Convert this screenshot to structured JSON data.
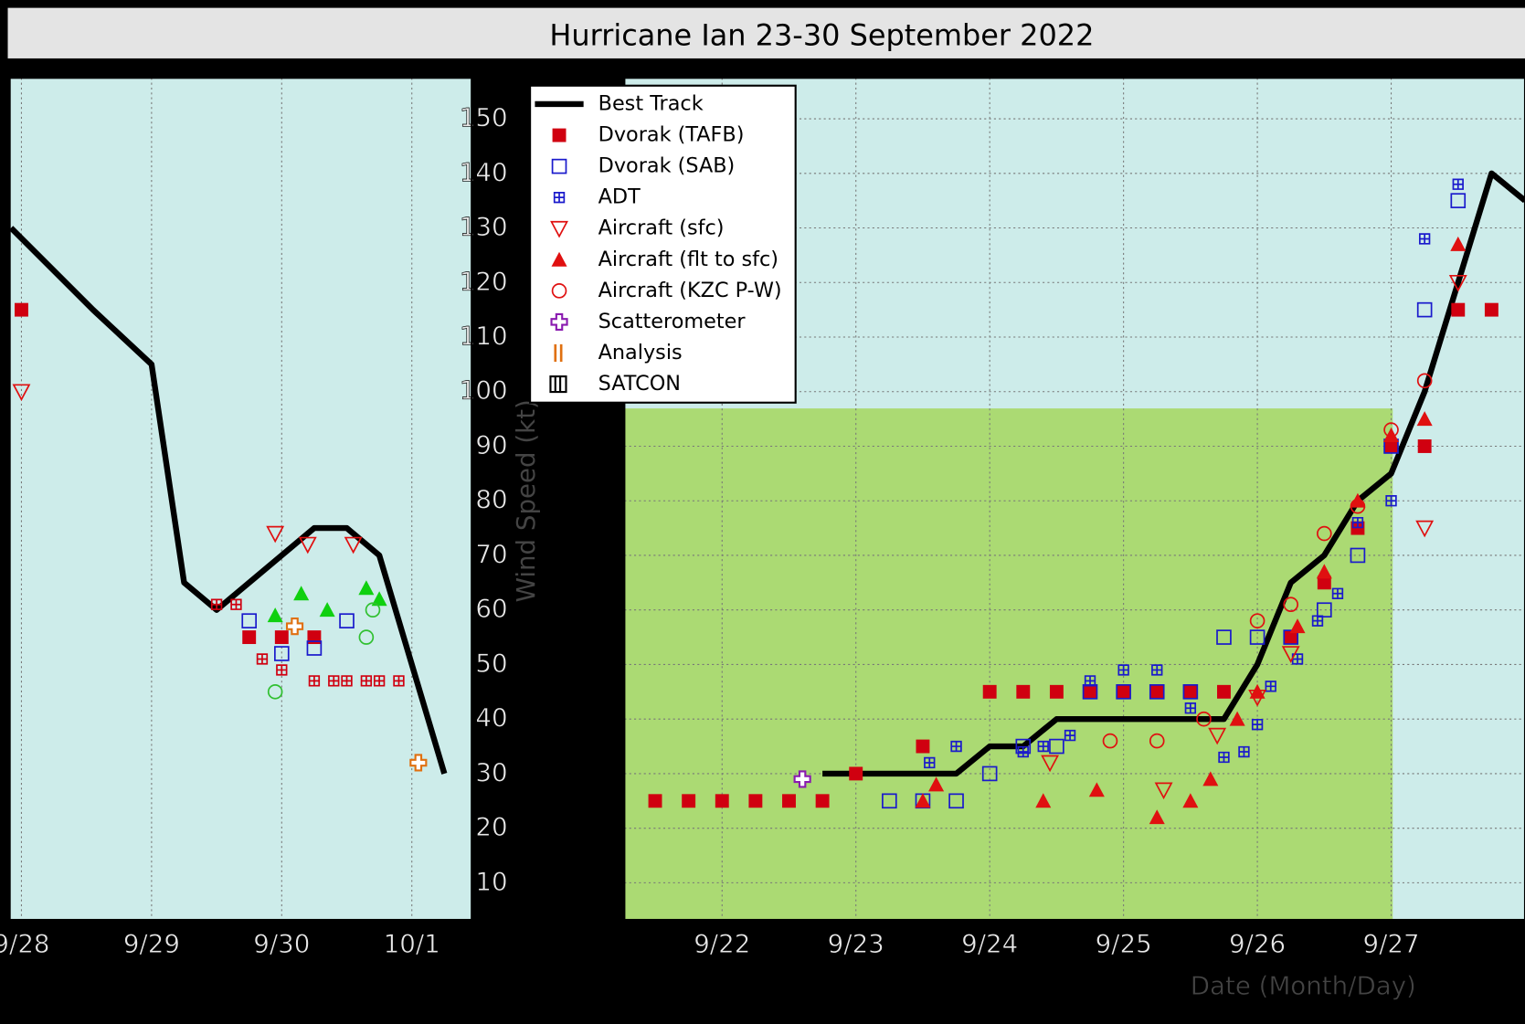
{
  "chart_data": [
    {
      "type": "line",
      "title": "Hurricane Ian  23-30 September 2022",
      "ylabel": "Wind Speed (kt)",
      "xlabel": "Date (Month/Day)",
      "xlim": [
        21.27,
        28.0
      ],
      "ylim": [
        3.2,
        157.5
      ],
      "grid": true,
      "legend": "upper left",
      "xticks": [
        {
          "value": 22,
          "label": "9/22"
        },
        {
          "value": 23,
          "label": "9/23"
        },
        {
          "value": 24,
          "label": "9/24"
        },
        {
          "value": 25,
          "label": "9/25"
        },
        {
          "value": 26,
          "label": "9/26"
        },
        {
          "value": 27,
          "label": "9/27"
        }
      ],
      "yticks": [
        10,
        20,
        30,
        40,
        50,
        60,
        70,
        80,
        90,
        100,
        110,
        120,
        130,
        140,
        150
      ],
      "series": [
        {
          "name": "Best Track",
          "color": "#000000",
          "marker": "line",
          "x": [
            22.75,
            23.75,
            24,
            24.25,
            24.5,
            25.75,
            26,
            26.25,
            26.5,
            26.75,
            27,
            27.25,
            27.5,
            27.75,
            28
          ],
          "values": [
            30,
            30,
            35,
            35,
            40,
            40,
            50,
            65,
            70,
            80,
            85,
            100,
            120,
            140,
            135
          ]
        },
        {
          "name": "Dvorak (TAFB)",
          "color": "#d00010",
          "marker": "square-filled",
          "x": [
            21.5,
            21.75,
            22,
            22.25,
            22.5,
            22.75,
            23,
            23.5,
            24,
            24.25,
            24.5,
            24.75,
            25,
            25.25,
            25.5,
            25.75,
            26.25,
            26.5,
            26.75,
            27,
            27.25,
            27.5,
            27.75
          ],
          "values": [
            25,
            25,
            25,
            25,
            25,
            25,
            30,
            35,
            45,
            45,
            45,
            45,
            45,
            45,
            45,
            45,
            55,
            65,
            75,
            90,
            90,
            115,
            115
          ]
        },
        {
          "name": "Dvorak (SAB)",
          "color": "#1a1acc",
          "marker": "square-open",
          "x": [
            23.25,
            23.5,
            23.75,
            24,
            24.25,
            24.5,
            24.75,
            25,
            25.25,
            25.5,
            25.75,
            26,
            26.25,
            26.5,
            26.75,
            27,
            27.25,
            27.5
          ],
          "values": [
            25,
            25,
            25,
            30,
            35,
            35,
            45,
            45,
            45,
            45,
            55,
            55,
            55,
            60,
            70,
            90,
            115,
            135
          ]
        },
        {
          "name": "ADT",
          "color": "#1a1acc",
          "marker": "square-plus",
          "x": [
            23.55,
            23.75,
            24.25,
            24.4,
            24.6,
            24.75,
            25,
            25.25,
            25.5,
            25.75,
            25.9,
            26,
            26.1,
            26.3,
            26.45,
            26.6,
            26.75,
            27,
            27.25,
            27.5
          ],
          "values": [
            32,
            35,
            34,
            35,
            37,
            47,
            49,
            49,
            42,
            33,
            34,
            39,
            46,
            51,
            58,
            63,
            76,
            80,
            128,
            138
          ]
        },
        {
          "name": "Aircraft (sfc)",
          "color": "#e01010",
          "marker": "tri-down-open",
          "x": [
            24.45,
            25.3,
            25.7,
            26,
            26.25,
            27.25,
            27.5
          ],
          "values": [
            32,
            27,
            37,
            44,
            52,
            75,
            120
          ]
        },
        {
          "name": "Aircraft (flt to sfc)",
          "color": "#e01010",
          "marker": "tri-up-filled",
          "x": [
            23.5,
            23.6,
            24.4,
            24.8,
            25.25,
            25.5,
            25.65,
            25.85,
            26,
            26.3,
            26.5,
            26.75,
            27,
            27.25,
            27.5
          ],
          "values": [
            25,
            28,
            25,
            27,
            22,
            25,
            29,
            40,
            45,
            57,
            67,
            80,
            92,
            95,
            127
          ]
        },
        {
          "name": "Aircraft (KZC P-W)",
          "color": "#e01010",
          "marker": "circle-open",
          "x": [
            24.9,
            25.25,
            25.6,
            26,
            26.25,
            26.5,
            26.75,
            27,
            27.25
          ],
          "values": [
            36,
            36,
            40,
            58,
            61,
            74,
            79,
            93,
            102
          ]
        },
        {
          "name": "Scatterometer",
          "color": "#8a1ab0",
          "marker": "plus",
          "x": [
            22.6
          ],
          "values": [
            29
          ]
        },
        {
          "name": "Analysis",
          "color": "#e07010",
          "marker": "bar-v",
          "x": [],
          "values": []
        },
        {
          "name": "SATCON",
          "color": "#000000",
          "marker": "bars",
          "x": [],
          "values": []
        }
      ]
    },
    {
      "type": "line",
      "xlim": [
        27.91,
        31.46
      ],
      "ylim": [
        3.2,
        157.5
      ],
      "grid": true,
      "xticks": [
        {
          "value": 28,
          "label": "9/28"
        },
        {
          "value": 29,
          "label": "9/29"
        },
        {
          "value": 30,
          "label": "9/30"
        },
        {
          "value": 31,
          "label": "10/1"
        }
      ],
      "series": [
        {
          "color": "#000000",
          "marker": "line",
          "x": [
            27.92,
            28.55,
            29,
            29.25,
            29.5,
            29.75,
            30.25,
            30.5,
            30.75,
            31.25
          ],
          "values": [
            130,
            115,
            105,
            65,
            60,
            65,
            75,
            75,
            70,
            30
          ]
        },
        {
          "color": "#d00010",
          "marker": "square-filled",
          "x": [
            28,
            29.75,
            30,
            30.25
          ],
          "values": [
            115,
            55,
            55,
            55
          ]
        },
        {
          "color": "#1a1acc",
          "marker": "square-open",
          "x": [
            29.75,
            30,
            30.25,
            30.5
          ],
          "values": [
            58,
            52,
            53,
            58
          ]
        },
        {
          "color": "#d00010",
          "marker": "square-plus",
          "x": [
            29.5,
            29.65,
            29.85,
            30,
            30.25,
            30.4,
            30.5,
            30.65,
            30.75,
            30.9
          ],
          "values": [
            61,
            61,
            51,
            49,
            47,
            47,
            47,
            47,
            47,
            47
          ]
        },
        {
          "color": "#e01010",
          "marker": "tri-down-open",
          "x": [
            28,
            29.95,
            30.2,
            30.55
          ],
          "values": [
            100,
            74,
            72,
            72
          ]
        },
        {
          "color": "#10d010",
          "marker": "tri-up-filled",
          "x": [
            29.95,
            30.15,
            30.35,
            30.65,
            30.75
          ],
          "values": [
            59,
            63,
            60,
            64,
            62
          ]
        },
        {
          "color": "#30c030",
          "marker": "circle-open",
          "x": [
            29.95,
            30.65,
            30.7
          ],
          "values": [
            45,
            55,
            60
          ]
        },
        {
          "color": "#e07010",
          "marker": "plus",
          "x": [
            30.1,
            31.05
          ],
          "values": [
            57,
            32
          ]
        }
      ]
    }
  ]
}
